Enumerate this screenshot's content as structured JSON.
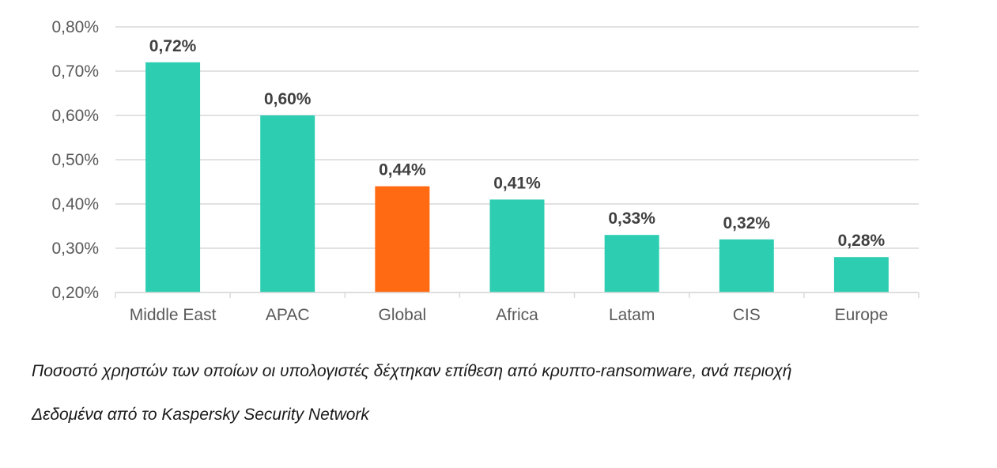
{
  "chart_data": {
    "type": "bar",
    "categories": [
      "Middle East",
      "APAC",
      "Global",
      "Africa",
      "Latam",
      "CIS",
      "Europe"
    ],
    "values": [
      0.72,
      0.6,
      0.44,
      0.41,
      0.33,
      0.32,
      0.28
    ],
    "data_labels": [
      "0,72%",
      "0,60%",
      "0,44%",
      "0,41%",
      "0,33%",
      "0,32%",
      "0,28%"
    ],
    "ylim": [
      0.2,
      0.8
    ],
    "yticks": [
      0.2,
      0.3,
      0.4,
      0.5,
      0.6,
      0.7,
      0.8
    ],
    "ytick_labels": [
      "0,20%",
      "0,30%",
      "0,40%",
      "0,50%",
      "0,60%",
      "0,70%",
      "0,80%"
    ],
    "grid": true,
    "legend": "none",
    "colors": {
      "bar": "#2dcdb2",
      "highlight": "#ff6a13",
      "grid": "#d9d9d9",
      "axis_text": "#595959",
      "label_text": "#404040"
    },
    "highlight_category": "Global"
  },
  "captions": [
    "Ποσοστό χρηστών των οποίων οι υπολογιστές δέχτηκαν επίθεση από κρυπτο-ransomware, ανά περιοχή",
    "Δεδομένα από το Kaspersky Security Network"
  ]
}
